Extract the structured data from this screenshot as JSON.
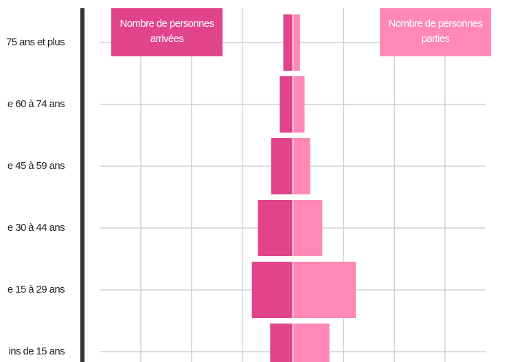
{
  "chart_data": {
    "type": "pyramid",
    "categories": [
      "75 ans et plus",
      "e 60 à 74 ans",
      "e 45 à 59 ans",
      "e 30 à 44 ans",
      "e 15 à 29 ans",
      "ins de 15 ans"
    ],
    "series": [
      {
        "name": "Nombre de personnes arrivées",
        "color": "#e2448b",
        "values": [
          1.9,
          2.6,
          4.3,
          6.9,
          8.1,
          4.5
        ]
      },
      {
        "name": "Nombre de personnes parties",
        "color": "#ff88b6",
        "values": [
          1.4,
          2.3,
          3.4,
          5.8,
          12.4,
          7.2
        ]
      }
    ],
    "xlim": [
      -38,
      38
    ],
    "xticks": [
      -30,
      -20,
      -10,
      0,
      10,
      20,
      30
    ],
    "grid": true
  }
}
